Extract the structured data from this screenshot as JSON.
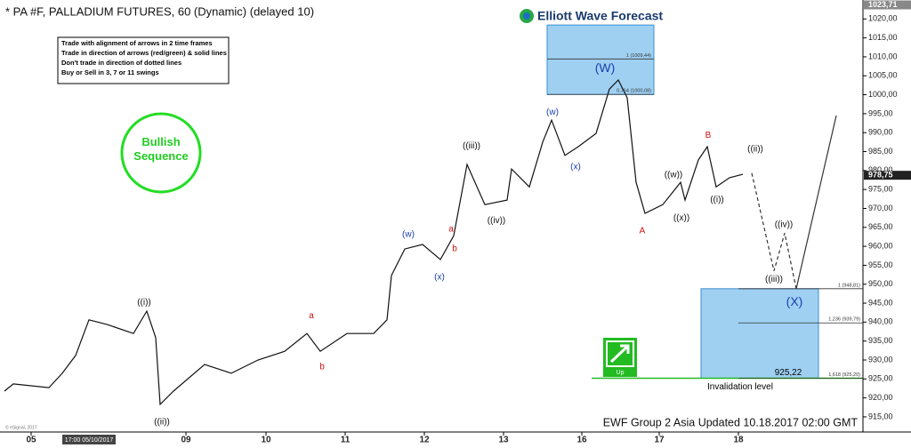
{
  "chart_data": {
    "type": "line",
    "title": "* PA #F, PALLADIUM FUTURES, 60 (Dynamic) (delayed 10)",
    "logo": "Elliott Wave Forecast",
    "notes": [
      "Trade with alignment of arrows in 2 time frames",
      "Trade in direction of arrows (red/green) & solid lines",
      "Don't trade in direction of dotted lines",
      "Buy or Sell in 3, 7 or 11 swings"
    ],
    "badge": "Bullish Sequence",
    "footer": "EWF Group 2 Asia Updated 10.18.2017 02:00 GMT",
    "copyright": "© eSignal, 2017",
    "date_tag": "17:00 05/10/2017",
    "signal": "Up",
    "xlim": [
      0,
      970
    ],
    "ylim": [
      911,
      1025
    ],
    "xticks": [
      {
        "value": 35,
        "label": "05"
      },
      {
        "value": 209,
        "label": "09"
      },
      {
        "value": 299,
        "label": "10"
      },
      {
        "value": 388,
        "label": "11"
      },
      {
        "value": 477,
        "label": "12"
      },
      {
        "value": 566,
        "label": "13"
      },
      {
        "value": 654,
        "label": "16"
      },
      {
        "value": 741,
        "label": "17"
      },
      {
        "value": 830,
        "label": "18"
      }
    ],
    "yticks": [
      {
        "value": 915,
        "label": "915,00"
      },
      {
        "value": 920,
        "label": "920,00"
      },
      {
        "value": 925,
        "label": "925,00"
      },
      {
        "value": 930,
        "label": "930,00"
      },
      {
        "value": 935,
        "label": "935,00"
      },
      {
        "value": 940,
        "label": "940,00"
      },
      {
        "value": 945,
        "label": "945,00"
      },
      {
        "value": 950,
        "label": "950,00"
      },
      {
        "value": 955,
        "label": "955,00"
      },
      {
        "value": 960,
        "label": "960,00"
      },
      {
        "value": 965,
        "label": "965,00"
      },
      {
        "value": 970,
        "label": "970,00"
      },
      {
        "value": 975,
        "label": "975,00"
      },
      {
        "value": 980,
        "label": "980,00"
      },
      {
        "value": 985,
        "label": "985,00"
      },
      {
        "value": 990,
        "label": "990,00"
      },
      {
        "value": 995,
        "label": "995,00"
      },
      {
        "value": 1000,
        "label": "1000,00"
      },
      {
        "value": 1005,
        "label": "1005,00"
      },
      {
        "value": 1010,
        "label": "1010,00"
      },
      {
        "value": 1015,
        "label": "1015,00"
      },
      {
        "value": 1020,
        "label": "1020,00"
      }
    ],
    "price_tags": [
      {
        "value": 978.75,
        "label": "978,75"
      },
      {
        "value": 1023.71,
        "label": "1023,71"
      }
    ],
    "series": [
      {
        "color": "#111111",
        "dashed": false,
        "x": [
          5,
          15,
          55,
          70,
          85,
          100,
          120,
          150,
          165,
          175,
          180,
          195,
          230,
          260,
          290,
          320,
          345,
          360,
          390,
          420,
          435,
          440,
          455,
          475,
          495,
          510,
          525,
          545,
          570,
          575,
          595,
          610,
          620,
          635,
          650,
          670,
          685,
          695,
          705,
          715,
          725,
          745,
          765,
          770,
          785,
          795,
          805,
          820,
          835
        ],
        "values": [
          921.8,
          923.7,
          922.7,
          926.5,
          931.2,
          940.6,
          939.4,
          937,
          942.9,
          935.9,
          918.3,
          921.8,
          928.8,
          926.5,
          930,
          932.3,
          937,
          932.3,
          937,
          937,
          940.6,
          952.3,
          959.3,
          960.5,
          956.5,
          962.8,
          981.6,
          971,
          972.2,
          980.4,
          975.7,
          987.5,
          993.3,
          984,
          986.3,
          989.8,
          1001.5,
          1003.9,
          999.2,
          976.9,
          968.7,
          971,
          976.9,
          972.2,
          982.8,
          986.3,
          975.7,
          978.1,
          979
        ]
      },
      {
        "color": "#333333",
        "dashed": true,
        "x": [
          845,
          870,
          882,
          895
        ],
        "values": [
          979.3,
          953.5,
          963.5,
          948.8
        ]
      },
      {
        "color": "#333333",
        "dashed": false,
        "x": [
          895,
          940
        ],
        "values": [
          948.8,
          994.5
        ]
      }
    ],
    "zones": [
      {
        "x": [
          615,
          735
        ],
        "from": 1000.08,
        "to": 1018.4,
        "color": "#9fd0f2"
      },
      {
        "x": [
          788,
          920
        ],
        "from": 925.2,
        "to": 948.81,
        "color": "#9fd0f2"
      }
    ],
    "zone_price": {
      "value": 925.22,
      "label": "925,22"
    },
    "levels": [
      {
        "value": 1009.44,
        "label": "1 (1009,44)",
        "x": [
          615,
          735
        ]
      },
      {
        "value": 1000.08,
        "label": "0,764 (1000,08)",
        "x": [
          615,
          735
        ]
      },
      {
        "value": 948.81,
        "label": "1 (948,81)",
        "x": [
          830,
          970
        ]
      },
      {
        "value": 939.79,
        "label": "1,236 (939,79)",
        "x": [
          830,
          970
        ]
      },
      {
        "value": 925.2,
        "label": "1,618 (925,20)",
        "x": [
          830,
          970
        ]
      }
    ],
    "invalidation": {
      "value": 925.2,
      "label": "Invalidation level",
      "color": "#22bb22"
    },
    "annotations": [
      {
        "text": "(W)",
        "x": 680,
        "y": 1006.9,
        "color": "#1a3fb0",
        "large": true
      },
      {
        "text": "((i))",
        "x": 162,
        "y": 945.2,
        "color": "#111111"
      },
      {
        "text": "((ii))",
        "x": 182,
        "y": 913.6,
        "color": "#111111"
      },
      {
        "text": "a",
        "x": 350,
        "y": 941.7,
        "color": "#cc1111"
      },
      {
        "text": "b",
        "x": 362,
        "y": 928.1,
        "color": "#cc1111"
      },
      {
        "text": "(w)",
        "x": 459,
        "y": 963.1,
        "color": "#1a3fb0"
      },
      {
        "text": "(x)",
        "x": 494,
        "y": 951.8,
        "color": "#1a3fb0"
      },
      {
        "text": "a",
        "x": 507,
        "y": 964.5,
        "color": "#cc1111"
      },
      {
        "text": "b",
        "x": 511,
        "y": 959.3,
        "color": "#cc1111"
      },
      {
        "text": "((iii))",
        "x": 530,
        "y": 986.5,
        "color": "#111111"
      },
      {
        "text": "((iv))",
        "x": 558,
        "y": 966.8,
        "color": "#111111"
      },
      {
        "text": "(w)",
        "x": 621,
        "y": 995.4,
        "color": "#1a3fb0"
      },
      {
        "text": "(x)",
        "x": 647,
        "y": 980.9,
        "color": "#1a3fb0"
      },
      {
        "text": "A",
        "x": 722,
        "y": 964,
        "color": "#cc1111"
      },
      {
        "text": "B",
        "x": 796,
        "y": 989.3,
        "color": "#cc1111"
      },
      {
        "text": "((w))",
        "x": 757,
        "y": 978.8,
        "color": "#111111"
      },
      {
        "text": "((x))",
        "x": 766,
        "y": 967.5,
        "color": "#111111"
      },
      {
        "text": "((i))",
        "x": 806,
        "y": 972.2,
        "color": "#111111"
      },
      {
        "text": "((ii))",
        "x": 849,
        "y": 985.6,
        "color": "#111111"
      },
      {
        "text": "((iii))",
        "x": 870,
        "y": 951.3,
        "color": "#111111"
      },
      {
        "text": "((iv))",
        "x": 881,
        "y": 965.7,
        "color": "#111111"
      },
      {
        "text": "(X)",
        "x": 893,
        "y": 945.2,
        "color": "#1a3fb0",
        "large": true
      }
    ]
  }
}
